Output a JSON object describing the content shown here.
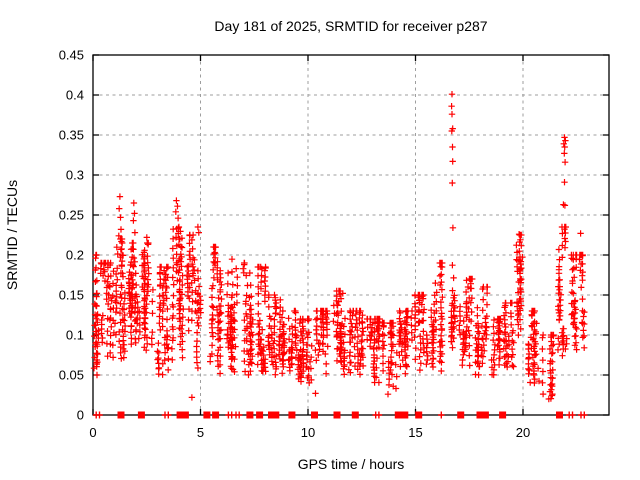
{
  "chart_data": {
    "type": "scatter",
    "title": "Day 181 of 2025, SRMTID for receiver p287",
    "xlabel": "GPS time / hours",
    "ylabel": "SRMTID / TECUs",
    "xlim": [
      0,
      24
    ],
    "ylim": [
      0,
      0.45
    ],
    "grid": true,
    "legend": "none",
    "marker": "plus",
    "marker_color": "#ff0000",
    "grid_color": "#9e9e9e",
    "border_color": "#000000",
    "xticks": [
      {
        "v": 0,
        "label": "0"
      },
      {
        "v": 5,
        "label": "5"
      },
      {
        "v": 10,
        "label": "10"
      },
      {
        "v": 15,
        "label": "15"
      },
      {
        "v": 20,
        "label": "20"
      }
    ],
    "yticks": [
      {
        "v": 0,
        "label": "0"
      },
      {
        "v": 0.05,
        "label": "0.05"
      },
      {
        "v": 0.1,
        "label": "0.1"
      },
      {
        "v": 0.15,
        "label": "0.15"
      },
      {
        "v": 0.2,
        "label": "0.2"
      },
      {
        "v": 0.25,
        "label": "0.25"
      },
      {
        "v": 0.3,
        "label": "0.3"
      },
      {
        "v": 0.35,
        "label": "0.35"
      },
      {
        "v": 0.4,
        "label": "0.4"
      },
      {
        "v": 0.45,
        "label": "0.45"
      }
    ],
    "outliers": [
      [
        16.7,
        0.401
      ],
      [
        16.68,
        0.386
      ],
      [
        16.7,
        0.376
      ],
      [
        16.73,
        0.358
      ],
      [
        16.69,
        0.355
      ],
      [
        16.72,
        0.335
      ],
      [
        16.73,
        0.317
      ],
      [
        16.71,
        0.29
      ],
      [
        16.74,
        0.234
      ],
      [
        21.93,
        0.347
      ],
      [
        21.97,
        0.343
      ],
      [
        21.9,
        0.339
      ],
      [
        21.94,
        0.335
      ],
      [
        21.92,
        0.327
      ],
      [
        21.96,
        0.316
      ],
      [
        21.93,
        0.291
      ],
      [
        21.88,
        0.263
      ],
      [
        21.95,
        0.262
      ],
      [
        22.68,
        0.227
      ],
      [
        1.25,
        0.273
      ],
      [
        1.22,
        0.258
      ],
      [
        1.28,
        0.247
      ],
      [
        1.3,
        0.232
      ],
      [
        1.2,
        0.224
      ],
      [
        1.9,
        0.265
      ],
      [
        1.93,
        0.252
      ],
      [
        1.88,
        0.243
      ],
      [
        1.95,
        0.228
      ],
      [
        3.88,
        0.268
      ],
      [
        3.93,
        0.261
      ],
      [
        3.85,
        0.254
      ],
      [
        3.96,
        0.246
      ],
      [
        4.88,
        0.235
      ],
      [
        4.92,
        0.228
      ],
      [
        2.5,
        0.222
      ],
      [
        11.62,
        0.152
      ],
      [
        19.82,
        0.226
      ],
      [
        19.88,
        0.219
      ],
      [
        4.6,
        0.022
      ],
      [
        10.35,
        0.027
      ],
      [
        13.72,
        0.026
      ],
      [
        21.2,
        0.02
      ]
    ],
    "clusters": [
      {
        "x": 0.15,
        "dx": 0.15,
        "y0": 0.05,
        "y1": 0.2,
        "n": 45
      },
      {
        "x": 0.6,
        "dx": 0.25,
        "y0": 0.07,
        "y1": 0.19,
        "n": 55
      },
      {
        "x": 1.25,
        "dx": 0.3,
        "y0": 0.07,
        "y1": 0.22,
        "n": 70
      },
      {
        "x": 1.95,
        "dx": 0.3,
        "y0": 0.06,
        "y1": 0.215,
        "n": 75
      },
      {
        "x": 2.55,
        "dx": 0.25,
        "y0": 0.08,
        "y1": 0.215,
        "n": 60
      },
      {
        "x": 3.2,
        "dx": 0.3,
        "y0": 0.05,
        "y1": 0.185,
        "n": 65
      },
      {
        "x": 3.95,
        "dx": 0.3,
        "y0": 0.06,
        "y1": 0.235,
        "n": 75
      },
      {
        "x": 4.7,
        "dx": 0.3,
        "y0": 0.05,
        "y1": 0.225,
        "n": 65
      },
      {
        "x": 5.6,
        "dx": 0.35,
        "y0": 0.05,
        "y1": 0.21,
        "n": 75
      },
      {
        "x": 6.5,
        "dx": 0.3,
        "y0": 0.05,
        "y1": 0.2,
        "n": 65
      },
      {
        "x": 7.2,
        "dx": 0.25,
        "y0": 0.05,
        "y1": 0.19,
        "n": 55
      },
      {
        "x": 7.8,
        "dx": 0.25,
        "y0": 0.04,
        "y1": 0.185,
        "n": 55
      },
      {
        "x": 8.4,
        "dx": 0.3,
        "y0": 0.05,
        "y1": 0.15,
        "n": 55
      },
      {
        "x": 9.1,
        "dx": 0.35,
        "y0": 0.05,
        "y1": 0.13,
        "n": 60
      },
      {
        "x": 9.9,
        "dx": 0.35,
        "y0": 0.04,
        "y1": 0.12,
        "n": 65
      },
      {
        "x": 10.7,
        "dx": 0.35,
        "y0": 0.05,
        "y1": 0.13,
        "n": 65
      },
      {
        "x": 11.45,
        "dx": 0.35,
        "y0": 0.05,
        "y1": 0.155,
        "n": 65
      },
      {
        "x": 12.2,
        "dx": 0.35,
        "y0": 0.05,
        "y1": 0.13,
        "n": 65
      },
      {
        "x": 13.0,
        "dx": 0.35,
        "y0": 0.04,
        "y1": 0.12,
        "n": 65
      },
      {
        "x": 13.8,
        "dx": 0.35,
        "y0": 0.03,
        "y1": 0.115,
        "n": 60
      },
      {
        "x": 14.55,
        "dx": 0.3,
        "y0": 0.05,
        "y1": 0.13,
        "n": 60
      },
      {
        "x": 15.25,
        "dx": 0.3,
        "y0": 0.05,
        "y1": 0.15,
        "n": 55
      },
      {
        "x": 16.0,
        "dx": 0.35,
        "y0": 0.05,
        "y1": 0.19,
        "n": 65
      },
      {
        "x": 16.72,
        "dx": 0.12,
        "y0": 0.08,
        "y1": 0.235,
        "n": 30,
        "b": 1.1
      },
      {
        "x": 17.35,
        "dx": 0.3,
        "y0": 0.06,
        "y1": 0.17,
        "n": 60
      },
      {
        "x": 18.05,
        "dx": 0.3,
        "y0": 0.05,
        "y1": 0.16,
        "n": 55
      },
      {
        "x": 18.7,
        "dx": 0.25,
        "y0": 0.05,
        "y1": 0.12,
        "n": 45
      },
      {
        "x": 19.3,
        "dx": 0.25,
        "y0": 0.06,
        "y1": 0.14,
        "n": 45
      },
      {
        "x": 19.85,
        "dx": 0.15,
        "y0": 0.07,
        "y1": 0.225,
        "n": 50,
        "b": 1.2
      },
      {
        "x": 20.5,
        "dx": 0.3,
        "y0": 0.04,
        "y1": 0.13,
        "n": 50
      },
      {
        "x": 21.15,
        "dx": 0.25,
        "y0": 0.02,
        "y1": 0.1,
        "n": 40
      },
      {
        "x": 21.85,
        "dx": 0.2,
        "y0": 0.06,
        "y1": 0.235,
        "n": 55,
        "b": 1.2
      },
      {
        "x": 22.55,
        "dx": 0.3,
        "y0": 0.07,
        "y1": 0.2,
        "n": 70,
        "b": 1.3
      }
    ],
    "zero_markers": {
      "squares": [
        1.3,
        2.25,
        4.05,
        4.3,
        5.3,
        5.7,
        7.3,
        7.75,
        8.3,
        8.5,
        9.25,
        10.3,
        11.35,
        12.2,
        14.2,
        14.5,
        15.15,
        17.1,
        18.0,
        18.25,
        19.05,
        21.7
      ],
      "bars": [
        0.15,
        0.3,
        3.35,
        3.5,
        6.3,
        6.45,
        6.65,
        6.8,
        13.15,
        13.3,
        16.2,
        22.15,
        22.3,
        22.7,
        22.85
      ]
    }
  }
}
